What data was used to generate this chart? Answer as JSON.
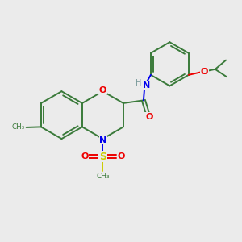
{
  "bg_color": "#ebebeb",
  "bond_color": "#3a7a3a",
  "N_color": "#0000ee",
  "O_color": "#ee0000",
  "S_color": "#cccc00",
  "H_color": "#7a9a9a",
  "figsize": [
    3.0,
    3.0
  ],
  "dpi": 100,
  "xlim": [
    0,
    10
  ],
  "ylim": [
    0,
    10
  ]
}
